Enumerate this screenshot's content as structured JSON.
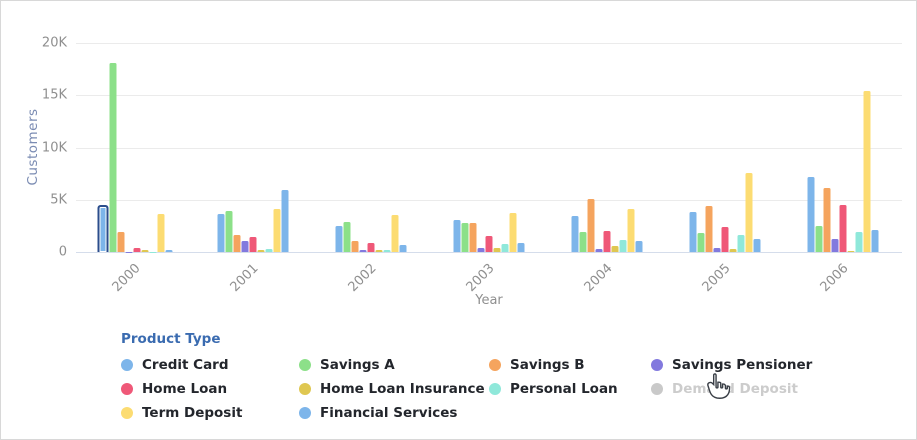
{
  "chart": {
    "y_axis_title": "Customers",
    "x_axis_title": "Year",
    "y_ticks": [
      "20K",
      "15K",
      "10K",
      "5K",
      "0"
    ]
  },
  "chart_data": {
    "type": "bar",
    "title": "",
    "xlabel": "Year",
    "ylabel": "Customers",
    "ylim": [
      0,
      20000
    ],
    "grid": true,
    "legend_position": "bottom",
    "categories": [
      "2000",
      "2001",
      "2002",
      "2003",
      "2004",
      "2005",
      "2006"
    ],
    "series": [
      {
        "name": "Credit Card",
        "color": "#7db5ea",
        "values": [
          4300,
          3600,
          2500,
          3050,
          3450,
          3850,
          7150
        ]
      },
      {
        "name": "Savings A",
        "color": "#8ce089",
        "values": [
          18050,
          3900,
          2900,
          2800,
          1900,
          1850,
          2450
        ]
      },
      {
        "name": "Savings B",
        "color": "#f5a45e",
        "values": [
          1950,
          1650,
          1100,
          2800,
          5100,
          4400,
          6150
        ]
      },
      {
        "name": "Savings Pensioner",
        "color": "#8279de",
        "values": [
          50,
          1100,
          150,
          400,
          300,
          400,
          1250
        ]
      },
      {
        "name": "Home Loan",
        "color": "#ef5878",
        "values": [
          400,
          1450,
          900,
          1500,
          2000,
          2400,
          4550
        ]
      },
      {
        "name": "Home Loan Insurance",
        "color": "#dfc751",
        "values": [
          200,
          150,
          200,
          400,
          600,
          300,
          100
        ]
      },
      {
        "name": "Personal Loan",
        "color": "#8fe8da",
        "values": [
          50,
          300,
          200,
          750,
          1150,
          1650,
          1900
        ]
      },
      {
        "name": "Term Deposit",
        "color": "#fcdc72",
        "values": [
          3600,
          4100,
          3500,
          3700,
          4100,
          7550,
          15400
        ]
      },
      {
        "name": "Financial Services",
        "color": "#7db5ea",
        "values": [
          150,
          5950,
          650,
          900,
          1050,
          1250,
          2150
        ]
      }
    ],
    "highlight": {
      "series": "Credit Card",
      "category": "2000"
    }
  },
  "legend": {
    "title": "Product Type",
    "items": [
      {
        "label": "Credit Card",
        "color": "#7db5ea",
        "enabled": true
      },
      {
        "label": "Savings A",
        "color": "#8ce089",
        "enabled": true
      },
      {
        "label": "Savings B",
        "color": "#f5a45e",
        "enabled": true
      },
      {
        "label": "Savings Pensioner",
        "color": "#8279de",
        "enabled": true
      },
      {
        "label": "Home Loan",
        "color": "#ef5878",
        "enabled": true
      },
      {
        "label": "Home Loan Insurance",
        "color": "#dfc751",
        "enabled": true
      },
      {
        "label": "Personal Loan",
        "color": "#8fe8da",
        "enabled": true
      },
      {
        "label": "Demand Deposit",
        "color": "#c9c9c9",
        "enabled": false
      },
      {
        "label": "Term Deposit",
        "color": "#fcdc72",
        "enabled": true
      },
      {
        "label": "Financial Services",
        "color": "#7db5ea",
        "enabled": true
      }
    ]
  }
}
